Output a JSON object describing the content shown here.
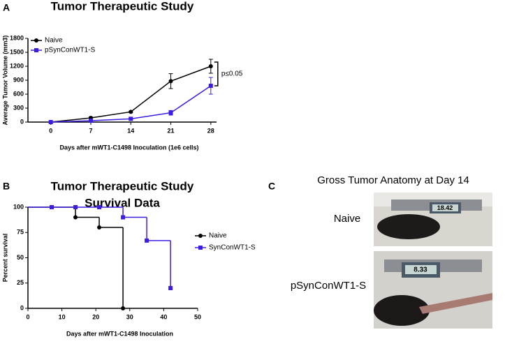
{
  "panel_labels": [
    "A",
    "B",
    "C"
  ],
  "chart_data": [
    {
      "type": "line",
      "title": "Tumor Therapeutic Study",
      "y_label": "Average Tumor Volume (mm3)",
      "x_label": "Days after mWT1-C1498 Inoculation (1e6 cells)",
      "xlim": [
        -4,
        29
      ],
      "xticks": [
        0,
        7,
        14,
        21,
        28
      ],
      "ylim": [
        0,
        1800
      ],
      "yticks": [
        0,
        300,
        600,
        900,
        1200,
        1500,
        1800
      ],
      "legend": "upper left",
      "annotation": "p≤0.05",
      "series": [
        {
          "name": "Naive",
          "color": "#000000",
          "marker": "circle",
          "x": [
            0,
            7,
            14,
            21,
            28
          ],
          "values": [
            0,
            90,
            220,
            880,
            1200
          ],
          "errors": [
            0,
            20,
            15,
            160,
            150
          ]
        },
        {
          "name": "pSynConWT1-S",
          "color": "#3b1fe0",
          "marker": "square",
          "x": [
            0,
            7,
            14,
            21,
            28
          ],
          "values": [
            0,
            30,
            70,
            200,
            780
          ],
          "errors": [
            0,
            10,
            10,
            50,
            180
          ]
        }
      ]
    },
    {
      "type": "step",
      "title": "Tumor Therapeutic Study",
      "subtitle": "Survival Data",
      "y_label": "Percent survival",
      "x_label": "Days after mWT1-C1498 Inoculation",
      "xlim": [
        0,
        50
      ],
      "xticks": [
        0,
        10,
        20,
        30,
        40,
        50
      ],
      "ylim": [
        0,
        100
      ],
      "yticks": [
        0,
        25,
        50,
        75,
        100
      ],
      "legend": "right",
      "series": [
        {
          "name": "Naive",
          "color": "#000000",
          "marker": "circle",
          "x": [
            0,
            14,
            21,
            28
          ],
          "values": [
            100,
            90,
            80,
            0
          ]
        },
        {
          "name": "SynConWT1-S",
          "color": "#3b1fe0",
          "marker": "square",
          "x": [
            0,
            7,
            14,
            21,
            28,
            35,
            42
          ],
          "values": [
            100,
            100,
            100,
            100,
            90,
            67,
            20
          ]
        }
      ]
    }
  ],
  "photos": {
    "title": "Gross Tumor Anatomy at Day 14",
    "rows": [
      {
        "label": "Naive",
        "reading": "18.42"
      },
      {
        "label": "pSynConWT1-S",
        "reading": "8.33"
      }
    ]
  }
}
